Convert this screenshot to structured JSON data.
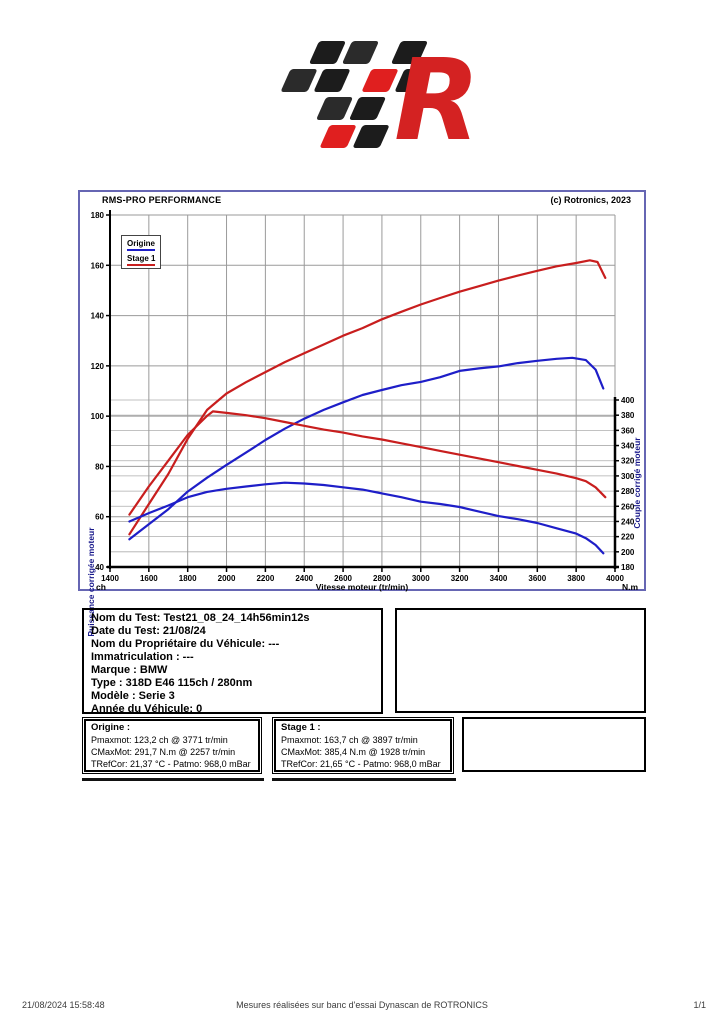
{
  "chart": {
    "title": "RMS-PRO PERFORMANCE",
    "copyright": "(c) Rotronics, 2023",
    "legend": [
      {
        "label": "Origine",
        "color": "#1e1ec8"
      },
      {
        "label": "Stage 1",
        "color": "#c81e1e"
      }
    ],
    "left_axis_title": "Puissance corrigée moteur",
    "right_axis_title": "Couple corrigé moteur",
    "x_axis_title": "Vitesse moteur (tr/min)",
    "x_unit_left": "ch",
    "x_unit_right": "N.m"
  },
  "chart_data": {
    "type": "line",
    "title": "RMS-PRO PERFORMANCE",
    "xlabel": "Vitesse moteur (tr/min)",
    "ylabel_left": "Puissance corrigée moteur (ch)",
    "ylabel_right": "Couple corrigé moteur (N.m)",
    "x_range": [
      1400,
      4000
    ],
    "x_step": 200,
    "left_range": [
      40,
      180
    ],
    "left_step": 20,
    "right_range": [
      180,
      400
    ],
    "right_step": 20,
    "grid": true,
    "legend_position": "top-left",
    "series": [
      {
        "name": "Stage 1 - Puissance (ch)",
        "axis": "left",
        "color": "#c81e1e",
        "points": [
          [
            1500,
            53
          ],
          [
            1600,
            65
          ],
          [
            1700,
            77
          ],
          [
            1800,
            91
          ],
          [
            1900,
            102.5
          ],
          [
            2000,
            109
          ],
          [
            2100,
            113.5
          ],
          [
            2200,
            117.5
          ],
          [
            2300,
            121.5
          ],
          [
            2400,
            125
          ],
          [
            2500,
            128.5
          ],
          [
            2600,
            132
          ],
          [
            2700,
            135
          ],
          [
            2800,
            138.5
          ],
          [
            2900,
            141.5
          ],
          [
            3000,
            144.4
          ],
          [
            3100,
            147
          ],
          [
            3200,
            149.5
          ],
          [
            3300,
            151.7
          ],
          [
            3400,
            153.9
          ],
          [
            3500,
            155.9
          ],
          [
            3600,
            157.8
          ],
          [
            3700,
            159.6
          ],
          [
            3800,
            160.9
          ],
          [
            3870,
            162
          ],
          [
            3910,
            161.3
          ],
          [
            3950,
            155
          ]
        ]
      },
      {
        "name": "Origine - Puissance (ch)",
        "axis": "left",
        "color": "#1e1ec8",
        "points": [
          [
            1500,
            51
          ],
          [
            1600,
            57
          ],
          [
            1700,
            63
          ],
          [
            1800,
            70
          ],
          [
            1900,
            75.5
          ],
          [
            2000,
            80.6
          ],
          [
            2100,
            85.5
          ],
          [
            2200,
            90.5
          ],
          [
            2300,
            95
          ],
          [
            2400,
            99
          ],
          [
            2500,
            102.5
          ],
          [
            2600,
            105.5
          ],
          [
            2700,
            108.4
          ],
          [
            2800,
            110.4
          ],
          [
            2900,
            112.3
          ],
          [
            3000,
            113.6
          ],
          [
            3100,
            115.5
          ],
          [
            3200,
            118
          ],
          [
            3300,
            119
          ],
          [
            3400,
            119.8
          ],
          [
            3500,
            121.1
          ],
          [
            3600,
            122
          ],
          [
            3700,
            122.8
          ],
          [
            3780,
            123.2
          ],
          [
            3850,
            122.3
          ],
          [
            3900,
            118.5
          ],
          [
            3940,
            111
          ]
        ]
      },
      {
        "name": "Stage 1 - Couple (N.m)",
        "axis": "right",
        "color": "#c81e1e",
        "points": [
          [
            1500,
            249
          ],
          [
            1600,
            286
          ],
          [
            1700,
            320
          ],
          [
            1800,
            354
          ],
          [
            1900,
            379
          ],
          [
            1930,
            385
          ],
          [
            2000,
            383
          ],
          [
            2100,
            380
          ],
          [
            2200,
            376
          ],
          [
            2300,
            371
          ],
          [
            2400,
            366
          ],
          [
            2500,
            361
          ],
          [
            2600,
            357
          ],
          [
            2700,
            352
          ],
          [
            2800,
            348
          ],
          [
            2900,
            343
          ],
          [
            3000,
            338
          ],
          [
            3100,
            333
          ],
          [
            3200,
            328
          ],
          [
            3300,
            323
          ],
          [
            3400,
            318
          ],
          [
            3500,
            313
          ],
          [
            3600,
            308
          ],
          [
            3700,
            303
          ],
          [
            3800,
            297
          ],
          [
            3850,
            293
          ],
          [
            3900,
            285
          ],
          [
            3950,
            272
          ]
        ]
      },
      {
        "name": "Origine - Couple (N.m)",
        "axis": "right",
        "color": "#1e1ec8",
        "points": [
          [
            1500,
            240
          ],
          [
            1600,
            251
          ],
          [
            1700,
            261
          ],
          [
            1800,
            272
          ],
          [
            1900,
            279
          ],
          [
            2000,
            283
          ],
          [
            2100,
            286
          ],
          [
            2200,
            289
          ],
          [
            2300,
            291
          ],
          [
            2400,
            290
          ],
          [
            2500,
            288
          ],
          [
            2600,
            285
          ],
          [
            2700,
            282
          ],
          [
            2800,
            277
          ],
          [
            2900,
            272
          ],
          [
            3000,
            266
          ],
          [
            3100,
            263
          ],
          [
            3200,
            259
          ],
          [
            3300,
            253
          ],
          [
            3400,
            247
          ],
          [
            3500,
            243
          ],
          [
            3600,
            238
          ],
          [
            3700,
            231
          ],
          [
            3800,
            224
          ],
          [
            3850,
            218
          ],
          [
            3900,
            209
          ],
          [
            3940,
            198
          ]
        ]
      }
    ]
  },
  "vehicle_info": {
    "lines": [
      "Nom du Test: Test21_08_24_14h56min12s",
      "Date du Test: 21/08/24",
      "Nom du Propriétaire du Véhicule: ---",
      "Immatriculation  : ---",
      "Marque  : BMW",
      "Type  : 318D E46 115ch / 280nm",
      "Modèle  : Serie 3",
      "Année du Véhicule: 0"
    ]
  },
  "results": {
    "origine": {
      "title": "Origine :",
      "lines": [
        "Pmaxmot: 123,2 ch @ 3771 tr/min",
        "CMaxMot: 291,7 N.m @ 2257 tr/min",
        "TRefCor: 21,37 °C - Patmo: 968,0 mBar"
      ]
    },
    "stage1": {
      "title": "Stage 1 :",
      "lines": [
        "Pmaxmot: 163,7 ch @ 3897 tr/min",
        "CMaxMot: 385,4 N.m @ 1928 tr/min",
        "TRefCor: 21,65 °C - Patmo: 968,0 mBar"
      ]
    }
  },
  "footer": {
    "datetime": "21/08/2024 15:58:48",
    "note": "Mesures réalisées sur banc d'essai Dynascan de ROTRONICS",
    "page": "1/1"
  }
}
